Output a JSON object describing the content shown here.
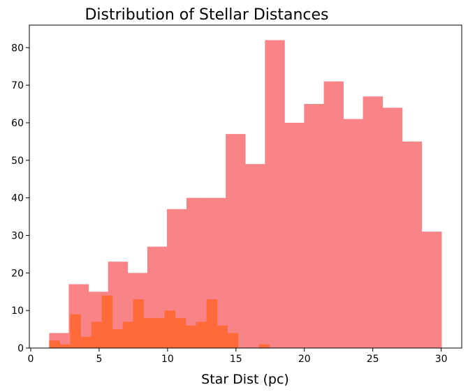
{
  "chart_data": {
    "type": "bar",
    "title": "Distribution of Stellar Distances",
    "xlabel": "Star Dist (pc)",
    "ylabel": "",
    "xlim": [
      -0.1,
      31.5
    ],
    "ylim": [
      0,
      86
    ],
    "xticks": [
      0,
      5,
      10,
      15,
      20,
      25,
      30
    ],
    "yticks": [
      0,
      10,
      20,
      30,
      40,
      50,
      60,
      70,
      80
    ],
    "grid": false,
    "series": [
      {
        "color": "#f88488",
        "bin_edges": [
          1.35,
          2.78,
          4.22,
          5.65,
          7.08,
          8.52,
          9.95,
          11.38,
          12.82,
          14.25,
          15.68,
          17.12,
          18.55,
          19.98,
          21.42,
          22.85,
          24.28,
          25.72,
          27.15,
          28.58,
          30.02
        ],
        "values": [
          4,
          17,
          15,
          23,
          20,
          27,
          37,
          40,
          40,
          57,
          49,
          82,
          60,
          65,
          71,
          61,
          67,
          64,
          55,
          31
        ]
      },
      {
        "color": "#ff6a3a",
        "bin_edges": [
          1.35,
          2.12,
          2.88,
          3.65,
          4.42,
          5.18,
          5.95,
          6.72,
          7.48,
          8.25,
          9.02,
          9.78,
          10.55,
          11.32,
          12.08,
          12.85,
          13.62,
          14.38,
          15.15,
          15.92,
          16.68,
          17.45,
          18.22
        ],
        "values": [
          2,
          1,
          9,
          3,
          7,
          14,
          5,
          7,
          13,
          8,
          8,
          10,
          8,
          6,
          7,
          13,
          6,
          4,
          0,
          0,
          1,
          0
        ]
      }
    ]
  }
}
